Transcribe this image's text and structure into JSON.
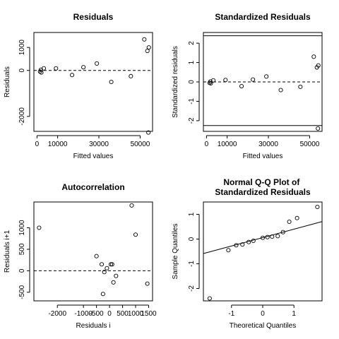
{
  "chart_data": [
    {
      "type": "scatter",
      "title": "Residuals",
      "xlabel": "Fitted values",
      "ylabel": "Residuals",
      "xlim": [
        -1500,
        56000
      ],
      "ylim": [
        -2650,
        1650
      ],
      "xticks": [
        0,
        10000,
        30000,
        50000
      ],
      "yticks": [
        -2000,
        0,
        1000
      ],
      "xtick_labels": [
        "0",
        "10000",
        "30000",
        "50000"
      ],
      "ytick_labels": [
        "-2000",
        "0",
        "1000"
      ],
      "ref_lines": [
        {
          "orientation": "h",
          "value": 0,
          "style": "dashed"
        }
      ],
      "points": [
        {
          "x": 1500,
          "y": -50
        },
        {
          "x": 1900,
          "y": 30
        },
        {
          "x": 2100,
          "y": -90
        },
        {
          "x": 3300,
          "y": 90
        },
        {
          "x": 9200,
          "y": 90
        },
        {
          "x": 17000,
          "y": -200
        },
        {
          "x": 22500,
          "y": 140
        },
        {
          "x": 29000,
          "y": 300
        },
        {
          "x": 36000,
          "y": -500
        },
        {
          "x": 45500,
          "y": -250
        },
        {
          "x": 52000,
          "y": 1350
        },
        {
          "x": 53500,
          "y": 850
        },
        {
          "x": 54200,
          "y": 1000
        },
        {
          "x": 54000,
          "y": -2700
        }
      ]
    },
    {
      "type": "scatter",
      "title": "Standardized Residuals",
      "xlabel": "Fitted values",
      "ylabel": "Standardized residuals",
      "xlim": [
        -1500,
        56000
      ],
      "ylim": [
        -2.55,
        2.55
      ],
      "xticks": [
        0,
        10000,
        30000,
        50000
      ],
      "yticks": [
        -2,
        -1,
        0,
        1,
        2
      ],
      "xtick_labels": [
        "0",
        "10000",
        "30000",
        "50000"
      ],
      "ytick_labels": [
        "-2",
        "-1",
        "0",
        "1",
        "2"
      ],
      "ref_lines": [
        {
          "orientation": "h",
          "value": 0,
          "style": "dashed"
        },
        {
          "orientation": "h",
          "value": 2.38,
          "style": "solid"
        },
        {
          "orientation": "h",
          "value": -2.25,
          "style": "solid"
        }
      ],
      "points": [
        {
          "x": 1500,
          "y": -0.05
        },
        {
          "x": 1900,
          "y": 0.02
        },
        {
          "x": 2100,
          "y": -0.07
        },
        {
          "x": 3300,
          "y": 0.08
        },
        {
          "x": 9200,
          "y": 0.1
        },
        {
          "x": 17000,
          "y": -0.22
        },
        {
          "x": 22500,
          "y": 0.12
        },
        {
          "x": 29000,
          "y": 0.28
        },
        {
          "x": 36000,
          "y": -0.42
        },
        {
          "x": 45500,
          "y": -0.25
        },
        {
          "x": 52000,
          "y": 1.3
        },
        {
          "x": 53500,
          "y": 0.75
        },
        {
          "x": 54200,
          "y": 0.85
        },
        {
          "x": 54000,
          "y": -2.4
        }
      ]
    },
    {
      "type": "scatter",
      "title": "Autocorrelation",
      "xlabel": "Residuals i",
      "ylabel": "Residuals i+1",
      "xlim": [
        -2900,
        1650
      ],
      "ylim": [
        -700,
        1600
      ],
      "xticks": [
        -2000,
        -1000,
        -500,
        0,
        500,
        1000,
        1500
      ],
      "yticks": [
        -500,
        0,
        500,
        1000
      ],
      "xtick_labels": [
        "-2000",
        "-1000",
        "-500",
        "0",
        "500",
        "1000",
        "1500"
      ],
      "ytick_labels": [
        "-500",
        "0",
        "500",
        "1000"
      ],
      "ref_lines": [
        {
          "orientation": "h",
          "value": 0,
          "style": "dashed"
        }
      ],
      "points": [
        {
          "x": -2700,
          "y": 1000
        },
        {
          "x": -500,
          "y": 340
        },
        {
          "x": -300,
          "y": 150
        },
        {
          "x": -200,
          "y": -30
        },
        {
          "x": -100,
          "y": 60
        },
        {
          "x": 50,
          "y": 150
        },
        {
          "x": 100,
          "y": 150
        },
        {
          "x": 150,
          "y": -270
        },
        {
          "x": 250,
          "y": -120
        },
        {
          "x": -250,
          "y": -540
        },
        {
          "x": 850,
          "y": 1520
        },
        {
          "x": 1000,
          "y": 840
        },
        {
          "x": 1450,
          "y": -300
        }
      ]
    },
    {
      "type": "scatter",
      "title": "Normal Q-Q Plot of\nStandardized Residuals",
      "xlabel": "Theoretical Quantiles",
      "ylabel": "Sample Quantiles",
      "xlim": [
        -1.9,
        1.9
      ],
      "ylim": [
        -2.5,
        1.5
      ],
      "xticks": [
        -1,
        0,
        1
      ],
      "yticks": [
        -2,
        -1,
        0,
        1
      ],
      "xtick_labels": [
        "-1",
        "0",
        "1"
      ],
      "ytick_labels": [
        "-2",
        "-1",
        "0",
        "1"
      ],
      "ref_lines": [
        {
          "orientation": "diag",
          "intercept": 0.06,
          "slope": 0.34,
          "style": "solid"
        }
      ],
      "points": [
        {
          "x": -1.7,
          "y": -2.4
        },
        {
          "x": -1.1,
          "y": -0.45
        },
        {
          "x": -0.85,
          "y": -0.25
        },
        {
          "x": -0.65,
          "y": -0.22
        },
        {
          "x": -0.45,
          "y": -0.12
        },
        {
          "x": -0.3,
          "y": -0.07
        },
        {
          "x": 0.0,
          "y": 0.05
        },
        {
          "x": 0.15,
          "y": 0.08
        },
        {
          "x": 0.3,
          "y": 0.1
        },
        {
          "x": 0.48,
          "y": 0.12
        },
        {
          "x": 0.65,
          "y": 0.28
        },
        {
          "x": 0.85,
          "y": 0.7
        },
        {
          "x": 1.1,
          "y": 0.85
        },
        {
          "x": 1.75,
          "y": 1.3
        }
      ]
    }
  ]
}
